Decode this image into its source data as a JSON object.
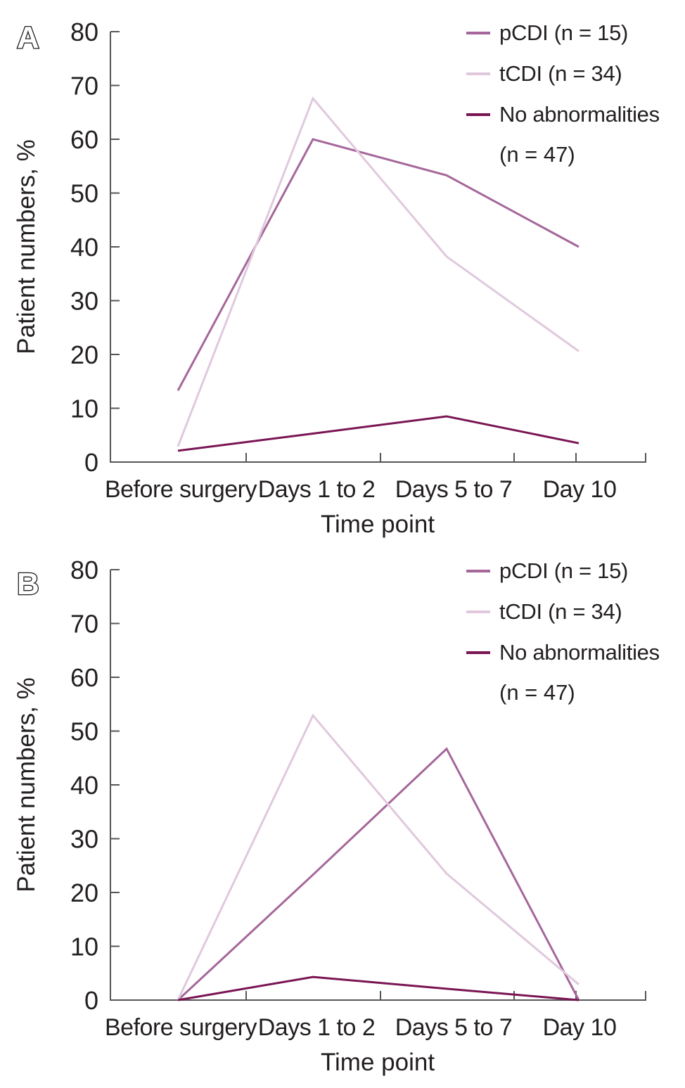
{
  "figure_panel_labels": [
    "A",
    "B"
  ],
  "axis_color": "#565658",
  "text_color": "#231f20",
  "chart_data": [
    {
      "type": "line",
      "panel_label": "A",
      "xlabel": "Time point",
      "ylabel": "Patient numbers, %",
      "categories": [
        "Before surgery",
        "Days 1 to 2",
        "Days 5 to 7",
        "Day 10"
      ],
      "y_ticks": [
        0,
        10,
        20,
        30,
        40,
        50,
        60,
        70,
        80
      ],
      "ylim": [
        0,
        80
      ],
      "grid": false,
      "legend_position": "top-right",
      "series": [
        {
          "name": "pCDI (n = 15)",
          "legend_lines": [
            "pCDI (n = 15)"
          ],
          "color": "#a5679a",
          "values": [
            13.3,
            60.0,
            53.3,
            40.0
          ]
        },
        {
          "name": "tCDI (n = 34)",
          "legend_lines": [
            "tCDI (n = 34)"
          ],
          "color": "#e0c9dd",
          "values": [
            2.9,
            67.6,
            38.2,
            20.6
          ]
        },
        {
          "name": "No abnormalities (n = 47)",
          "legend_lines": [
            "No abnormalities",
            "(n = 47)"
          ],
          "color": "#7a1554",
          "values": [
            2.1,
            5.3,
            8.5,
            3.5
          ]
        }
      ]
    },
    {
      "type": "line",
      "panel_label": "B",
      "xlabel": "Time point",
      "ylabel": "Patient numbers, %",
      "categories": [
        "Before surgery",
        "Days 1 to 2",
        "Days 5 to 7",
        "Day 10"
      ],
      "y_ticks": [
        0,
        10,
        20,
        30,
        40,
        50,
        60,
        70,
        80
      ],
      "ylim": [
        0,
        80
      ],
      "grid": false,
      "legend_position": "top-right",
      "series": [
        {
          "name": "pCDI (n = 15)",
          "legend_lines": [
            "pCDI (n = 15)"
          ],
          "color": "#a5679a",
          "values": [
            0,
            23.3,
            46.7,
            0
          ]
        },
        {
          "name": "tCDI (n = 34)",
          "legend_lines": [
            "tCDI (n = 34)"
          ],
          "color": "#e0c9dd",
          "values": [
            0,
            52.9,
            23.5,
            2.9
          ]
        },
        {
          "name": "No abnormalities (n = 47)",
          "legend_lines": [
            "No abnormalities",
            "(n = 47)"
          ],
          "color": "#7a1554",
          "values": [
            0,
            4.3,
            2.1,
            0
          ]
        }
      ]
    }
  ]
}
